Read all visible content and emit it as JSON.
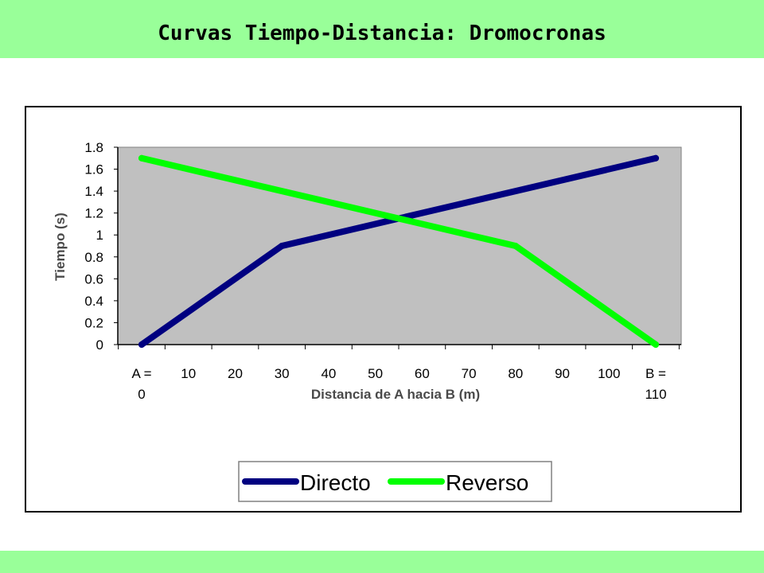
{
  "slide": {
    "title": "Curvas Tiempo-Distancia: Dromocronas"
  },
  "colors": {
    "band": "#99ff99",
    "plot_area": "#c0c0c0",
    "directo": "#000080",
    "reverso": "#00ff00"
  },
  "chart_data": {
    "type": "line",
    "title": "",
    "xlabel": "Distancia de A hacia B (m)",
    "ylabel": "Tiempo (s)",
    "x_tick_labels": [
      [
        "A =",
        "0"
      ],
      [
        "10"
      ],
      [
        "20"
      ],
      [
        "30"
      ],
      [
        "40"
      ],
      [
        "50"
      ],
      [
        "60"
      ],
      [
        "70"
      ],
      [
        "80"
      ],
      [
        "90"
      ],
      [
        "100"
      ],
      [
        "B =",
        "110"
      ]
    ],
    "y_tick_labels": [
      "0",
      "0.2",
      "0.4",
      "0.6",
      "0.8",
      "1",
      "1.2",
      "1.4",
      "1.6",
      "1.8"
    ],
    "xlim": [
      0,
      110
    ],
    "ylim": [
      0,
      1.8
    ],
    "grid": false,
    "legend_position": "bottom",
    "series": [
      {
        "name": "Directo",
        "color": "#000080",
        "x": [
          0,
          30,
          110
        ],
        "y": [
          0,
          0.9,
          1.7
        ]
      },
      {
        "name": "Reverso",
        "color": "#00ff00",
        "x": [
          0,
          80,
          110
        ],
        "y": [
          1.7,
          0.9,
          0
        ]
      }
    ]
  }
}
